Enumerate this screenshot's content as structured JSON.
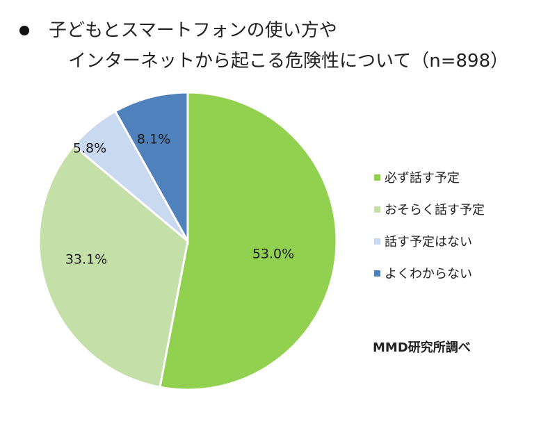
{
  "title": {
    "line1": "子どもとスマートフォンの使い方や",
    "line2": "インターネットから起こる危険性について（n=898）"
  },
  "source": "MMD研究所調べ",
  "chart_data": {
    "type": "pie",
    "title": "子どもとスマートフォンの使い方やインターネットから起こる危険性について（n=898）",
    "categories": [
      "必ず話す予定",
      "おそらく話す予定",
      "話す予定はない",
      "よくわからない"
    ],
    "values": [
      53.0,
      33.1,
      5.8,
      8.1
    ],
    "labels": [
      "53.0%",
      "33.1%",
      "5.8%",
      "8.1%"
    ],
    "colors": [
      "#92d050",
      "#c5dfa8",
      "#c9d9ef",
      "#4f81bd"
    ],
    "legend_position": "right"
  }
}
